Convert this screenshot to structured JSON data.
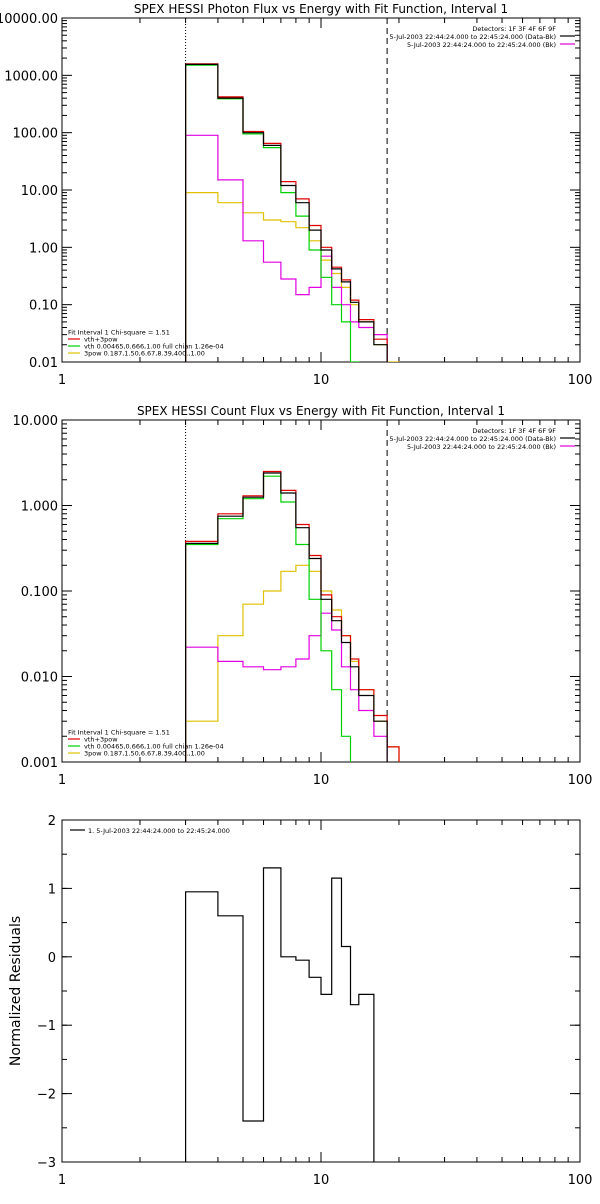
{
  "chart_data": [
    {
      "type": "line",
      "title": "SPEX HESSI Photon Flux vs Energy with Fit Function, Interval 1",
      "xlabel": "",
      "ylabel": "",
      "xscale": "log",
      "yscale": "log",
      "xlim": [
        1,
        100
      ],
      "ylim": [
        0.01,
        10000
      ],
      "x_ticks": [
        "1",
        "10",
        "100"
      ],
      "y_ticks": [
        "10000.00",
        "1000.00",
        "100.00",
        "10.00",
        "1.00",
        "0.10",
        "0.01"
      ],
      "grid": false,
      "legend_top": [
        "Detectors: 1F 3F 4F 6F 9F",
        "5-Jul-2003 22:44:24.000 to 22:45:24.000 (Data-Bk)",
        "5-Jul-2003 22:44:24.000 to 22:45:24.000 (Bk)"
      ],
      "legend_top_colors": [
        "",
        "#000000",
        "#e000e0"
      ],
      "legend_bottom": [
        "Fit Interval 1   Chi-square = 1.51",
        "vth+3pow",
        "vth 0.00465,0.666,1.00  full chian 1.26e-04",
        "3pow 0.187,1.50,6.67,8.39,400.,1.00"
      ],
      "legend_bottom_colors": [
        "",
        "#e00000",
        "#00d000",
        "#e0c000"
      ],
      "vlines": [
        {
          "x": 3.0,
          "style": "dotted"
        },
        {
          "x": 18.0,
          "style": "dashed"
        }
      ],
      "edges": [
        3,
        4,
        5,
        6,
        7,
        8,
        9,
        10,
        11,
        12,
        13,
        14,
        16,
        18,
        20,
        22
      ],
      "series": [
        {
          "name": "5-Jul-2003 22:44:24.000 to 22:45:24.000 (Data-Bk)",
          "color": "#000000",
          "values": [
            1550,
            400,
            100,
            60,
            12,
            6,
            2.0,
            0.9,
            0.42,
            0.25,
            0.11,
            0.05,
            0.02,
            null,
            null
          ]
        },
        {
          "name": "vth+3pow",
          "color": "#e00000",
          "values": [
            1580,
            420,
            105,
            65,
            14,
            7,
            2.4,
            1.0,
            0.45,
            0.27,
            0.12,
            0.055,
            0.025,
            null,
            null
          ]
        },
        {
          "name": "vth 0.00465,0.666,1.00  full chian 1.26e-04",
          "color": "#00d000",
          "values": [
            1500,
            390,
            95,
            55,
            9,
            3.5,
            0.9,
            0.3,
            0.1,
            0.05,
            0.01,
            null,
            null,
            null,
            null
          ]
        },
        {
          "name": "3pow 0.187,1.50,6.67,8.39,400.,1.00",
          "color": "#e0c000",
          "values": [
            9,
            6,
            4,
            3,
            2.8,
            2.2,
            1.3,
            0.6,
            0.35,
            0.2,
            0.1,
            0.05,
            0.02,
            0.01,
            null
          ]
        },
        {
          "name": "5-Jul-2003 22:44:24.000 to 22:45:24.000 (Bk)",
          "color": "#e000e0",
          "values": [
            90,
            15,
            1.3,
            0.55,
            0.28,
            0.15,
            0.2,
            0.7,
            0.2,
            0.1,
            0.05,
            0.04,
            0.03,
            null,
            null
          ]
        }
      ]
    },
    {
      "type": "line",
      "title": "SPEX HESSI Count Flux vs Energy with Fit Function, Interval 1",
      "xlabel": "",
      "ylabel": "",
      "xscale": "log",
      "yscale": "log",
      "xlim": [
        1,
        100
      ],
      "ylim": [
        0.001,
        10
      ],
      "x_ticks": [
        "1",
        "10",
        "100"
      ],
      "y_ticks": [
        "10.000",
        "1.000",
        "0.100",
        "0.010",
        "0.001"
      ],
      "grid": false,
      "legend_top": [
        "Detectors: 1F 3F 4F 6F 9F",
        "5-Jul-2003 22:44:24.000 to 22:45:24.000 (Data-Bk)",
        "5-Jul-2003 22:44:24.000 to 22:45:24.000 (Bk)"
      ],
      "legend_top_colors": [
        "",
        "#000000",
        "#e000e0"
      ],
      "legend_bottom": [
        "Fit Interval 1   Chi-square = 1.51",
        "vth+3pow",
        "vth 0.00465,0.666,1.00  full chian 1.26e-04",
        "3pow 0.187,1.50,6.67,8.39,400.,1.00"
      ],
      "legend_bottom_colors": [
        "",
        "#e00000",
        "#00d000",
        "#e0c000"
      ],
      "vlines": [
        {
          "x": 3.0,
          "style": "dotted"
        },
        {
          "x": 18.0,
          "style": "dashed"
        }
      ],
      "edges": [
        3,
        4,
        5,
        6,
        7,
        8,
        9,
        10,
        11,
        12,
        13,
        14,
        16,
        18,
        20,
        22
      ],
      "series": [
        {
          "name": "5-Jul-2003 22:44:24.000 to 22:45:24.000 (Data-Bk)",
          "color": "#000000",
          "values": [
            0.36,
            0.75,
            1.25,
            2.4,
            1.4,
            0.55,
            0.24,
            0.08,
            0.045,
            0.025,
            0.013,
            0.006,
            0.003,
            null,
            null
          ]
        },
        {
          "name": "vth+3pow",
          "color": "#e00000",
          "values": [
            0.38,
            0.8,
            1.3,
            2.5,
            1.5,
            0.6,
            0.26,
            0.09,
            0.05,
            0.03,
            0.016,
            0.007,
            0.0035,
            0.0015,
            null
          ]
        },
        {
          "name": "vth 0.00465,0.666,1.00  full chian 1.26e-04",
          "color": "#00d000",
          "values": [
            0.35,
            0.7,
            1.2,
            2.2,
            1.1,
            0.35,
            0.08,
            0.02,
            0.007,
            0.002,
            null,
            null,
            null,
            null,
            null
          ]
        },
        {
          "name": "3pow 0.187,1.50,6.67,8.39,400.,1.00",
          "color": "#e0c000",
          "values": [
            0.003,
            0.03,
            0.07,
            0.1,
            0.17,
            0.2,
            0.17,
            0.1,
            0.06,
            0.03,
            0.015,
            0.007,
            0.003,
            0.0015,
            null
          ]
        },
        {
          "name": "5-Jul-2003 22:44:24.000 to 22:45:24.000 (Bk)",
          "color": "#e000e0",
          "values": [
            0.022,
            0.015,
            0.013,
            0.012,
            0.013,
            0.016,
            0.03,
            0.055,
            0.035,
            0.013,
            0.007,
            0.004,
            0.002,
            null,
            null
          ]
        }
      ]
    },
    {
      "type": "line",
      "title": "",
      "xlabel": "",
      "ylabel": "Normalized Residuals",
      "xscale": "log",
      "yscale": "linear",
      "xlim": [
        1,
        100
      ],
      "ylim": [
        -3,
        2
      ],
      "x_ticks": [
        "1",
        "10",
        "100"
      ],
      "y_ticks": [
        "2",
        "1",
        "0",
        "-1",
        "-2",
        "-3"
      ],
      "grid": false,
      "legend_top": [
        "1. 5-Jul-2003 22:44:24.000 to 22:45:24.000"
      ],
      "legend_top_colors": [
        "#000000"
      ],
      "edges": [
        3,
        4,
        5,
        6,
        7,
        8,
        9,
        10,
        11,
        12,
        13,
        14,
        16,
        18
      ],
      "series": [
        {
          "name": "1. 5-Jul-2003 22:44:24.000 to 22:45:24.000",
          "color": "#000000",
          "values": [
            0.95,
            0.6,
            -2.4,
            1.3,
            0.0,
            -0.05,
            -0.3,
            -0.55,
            1.15,
            0.15,
            -0.7,
            -0.55,
            -3.1
          ]
        }
      ]
    }
  ]
}
